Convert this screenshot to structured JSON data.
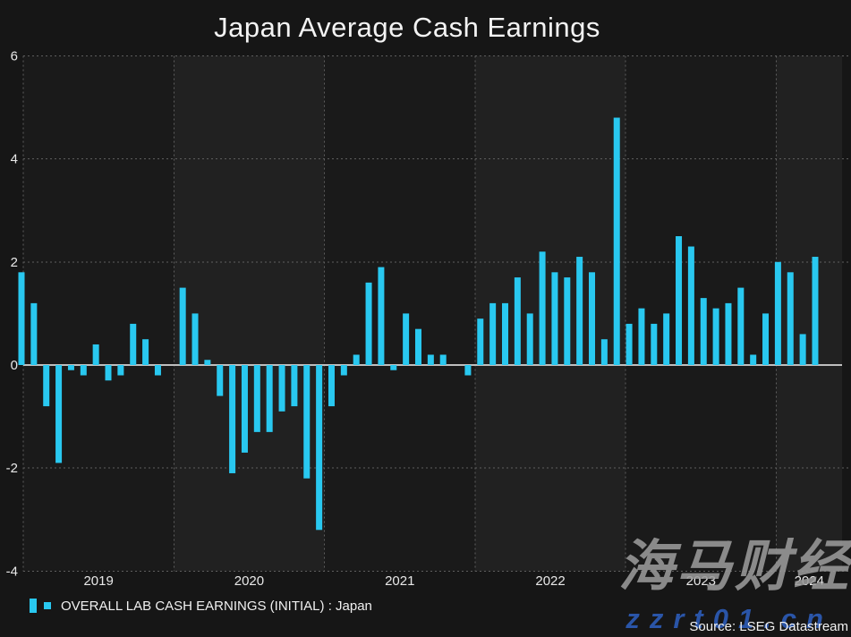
{
  "title": "Japan Average Cash Earnings",
  "legend": {
    "label": "OVERALL LAB CASH EARNINGS (INITIAL) : Japan"
  },
  "footer": {
    "source": "Source: LSEG Datastream"
  },
  "watermark": {
    "brand": "海马财经",
    "site": "zzrt01.cn"
  },
  "colors": {
    "bar": "#29c8f0",
    "background": "#161616",
    "band_dark": "#1a1a1a",
    "band_light": "#212121",
    "grid": "#5e5e5e",
    "zero_line": "#bfbfbf",
    "tick_text": "#e8e8e8",
    "title_text": "#f3f3f3",
    "watermark_gray": "#9a9a9a",
    "watermark_blue": "#2b58b0"
  },
  "chart_data": {
    "type": "bar",
    "title": "Japan Average Cash Earnings",
    "series_name": "OVERALL LAB CASH EARNINGS (INITIAL) : Japan",
    "xlabel": "",
    "ylabel": "",
    "start_month": "2018-12",
    "frequency": "monthly",
    "values": [
      1.8,
      1.2,
      -0.8,
      -1.9,
      -0.1,
      -0.2,
      0.4,
      -0.3,
      -0.2,
      0.8,
      0.5,
      -0.2,
      0.0,
      1.5,
      1.0,
      0.1,
      -0.6,
      -2.1,
      -1.7,
      -1.3,
      -1.3,
      -0.9,
      -0.8,
      -2.2,
      -3.2,
      -0.8,
      -0.2,
      0.2,
      1.6,
      1.9,
      -0.1,
      1.0,
      0.7,
      0.2,
      0.2,
      0.0,
      -0.2,
      0.9,
      1.2,
      1.2,
      1.7,
      1.0,
      2.2,
      1.8,
      1.7,
      2.1,
      1.8,
      0.5,
      4.8,
      0.8,
      1.1,
      0.8,
      1.0,
      2.5,
      2.3,
      1.3,
      1.1,
      1.2,
      1.5,
      0.2,
      1.0,
      2.0,
      1.8,
      0.6,
      2.1
    ],
    "ylim": [
      -4,
      6
    ],
    "yticks": [
      "6",
      "4",
      "2",
      "0",
      "-2",
      "-4"
    ],
    "year_labels": [
      "2019",
      "2020",
      "2021",
      "2022",
      "2023",
      "2024"
    ],
    "grid": "dashed",
    "legend_position": "bottom-left"
  }
}
